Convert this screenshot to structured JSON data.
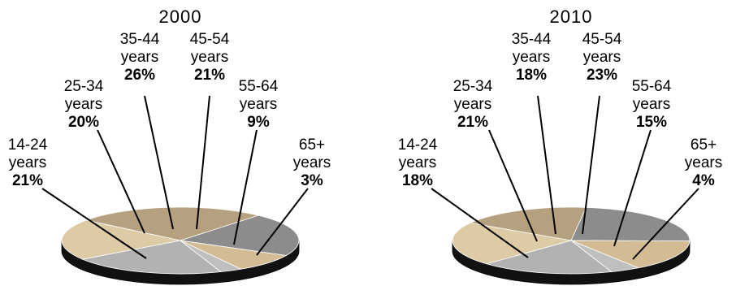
{
  "chart_data": [
    {
      "type": "pie",
      "title": "2000",
      "categories": [
        "14-24 years",
        "25-34 years",
        "35-44 years",
        "45-54 years",
        "55-64 years",
        "65+ years"
      ],
      "labels": [
        {
          "line1": "14-24",
          "line2": "years",
          "value_text": "21%"
        },
        {
          "line1": "25-34",
          "line2": "years",
          "value_text": "20%"
        },
        {
          "line1": "35-44",
          "line2": "years",
          "value_text": "26%"
        },
        {
          "line1": "45-54",
          "line2": "years",
          "value_text": "21%"
        },
        {
          "line1": "55-64",
          "line2": "years",
          "value_text": "9%"
        },
        {
          "line1": "65+",
          "line2": "years",
          "value_text": "3%"
        }
      ],
      "values": [
        21,
        20,
        26,
        21,
        9,
        3
      ],
      "colors": [
        "#b2b2b2",
        "#ddcba6",
        "#b5a180",
        "#8c8c8c",
        "#d3bc94",
        "#bfbfbf"
      ],
      "style": "3d"
    },
    {
      "type": "pie",
      "title": "2010",
      "categories": [
        "14-24 years",
        "25-34 years",
        "35-44 years",
        "45-54 years",
        "55-64 years",
        "65+ years"
      ],
      "labels": [
        {
          "line1": "14-24",
          "line2": "years",
          "value_text": "18%"
        },
        {
          "line1": "25-34",
          "line2": "years",
          "value_text": "21%"
        },
        {
          "line1": "35-44",
          "line2": "years",
          "value_text": "18%"
        },
        {
          "line1": "45-54",
          "line2": "years",
          "value_text": "23%"
        },
        {
          "line1": "55-64",
          "line2": "years",
          "value_text": "15%"
        },
        {
          "line1": "65+",
          "line2": "years",
          "value_text": "4%"
        }
      ],
      "values": [
        18,
        21,
        18,
        23,
        15,
        4
      ],
      "colors": [
        "#b2b2b2",
        "#ddcba6",
        "#b5a180",
        "#8c8c8c",
        "#d3bc94",
        "#bfbfbf"
      ],
      "style": "3d"
    }
  ]
}
